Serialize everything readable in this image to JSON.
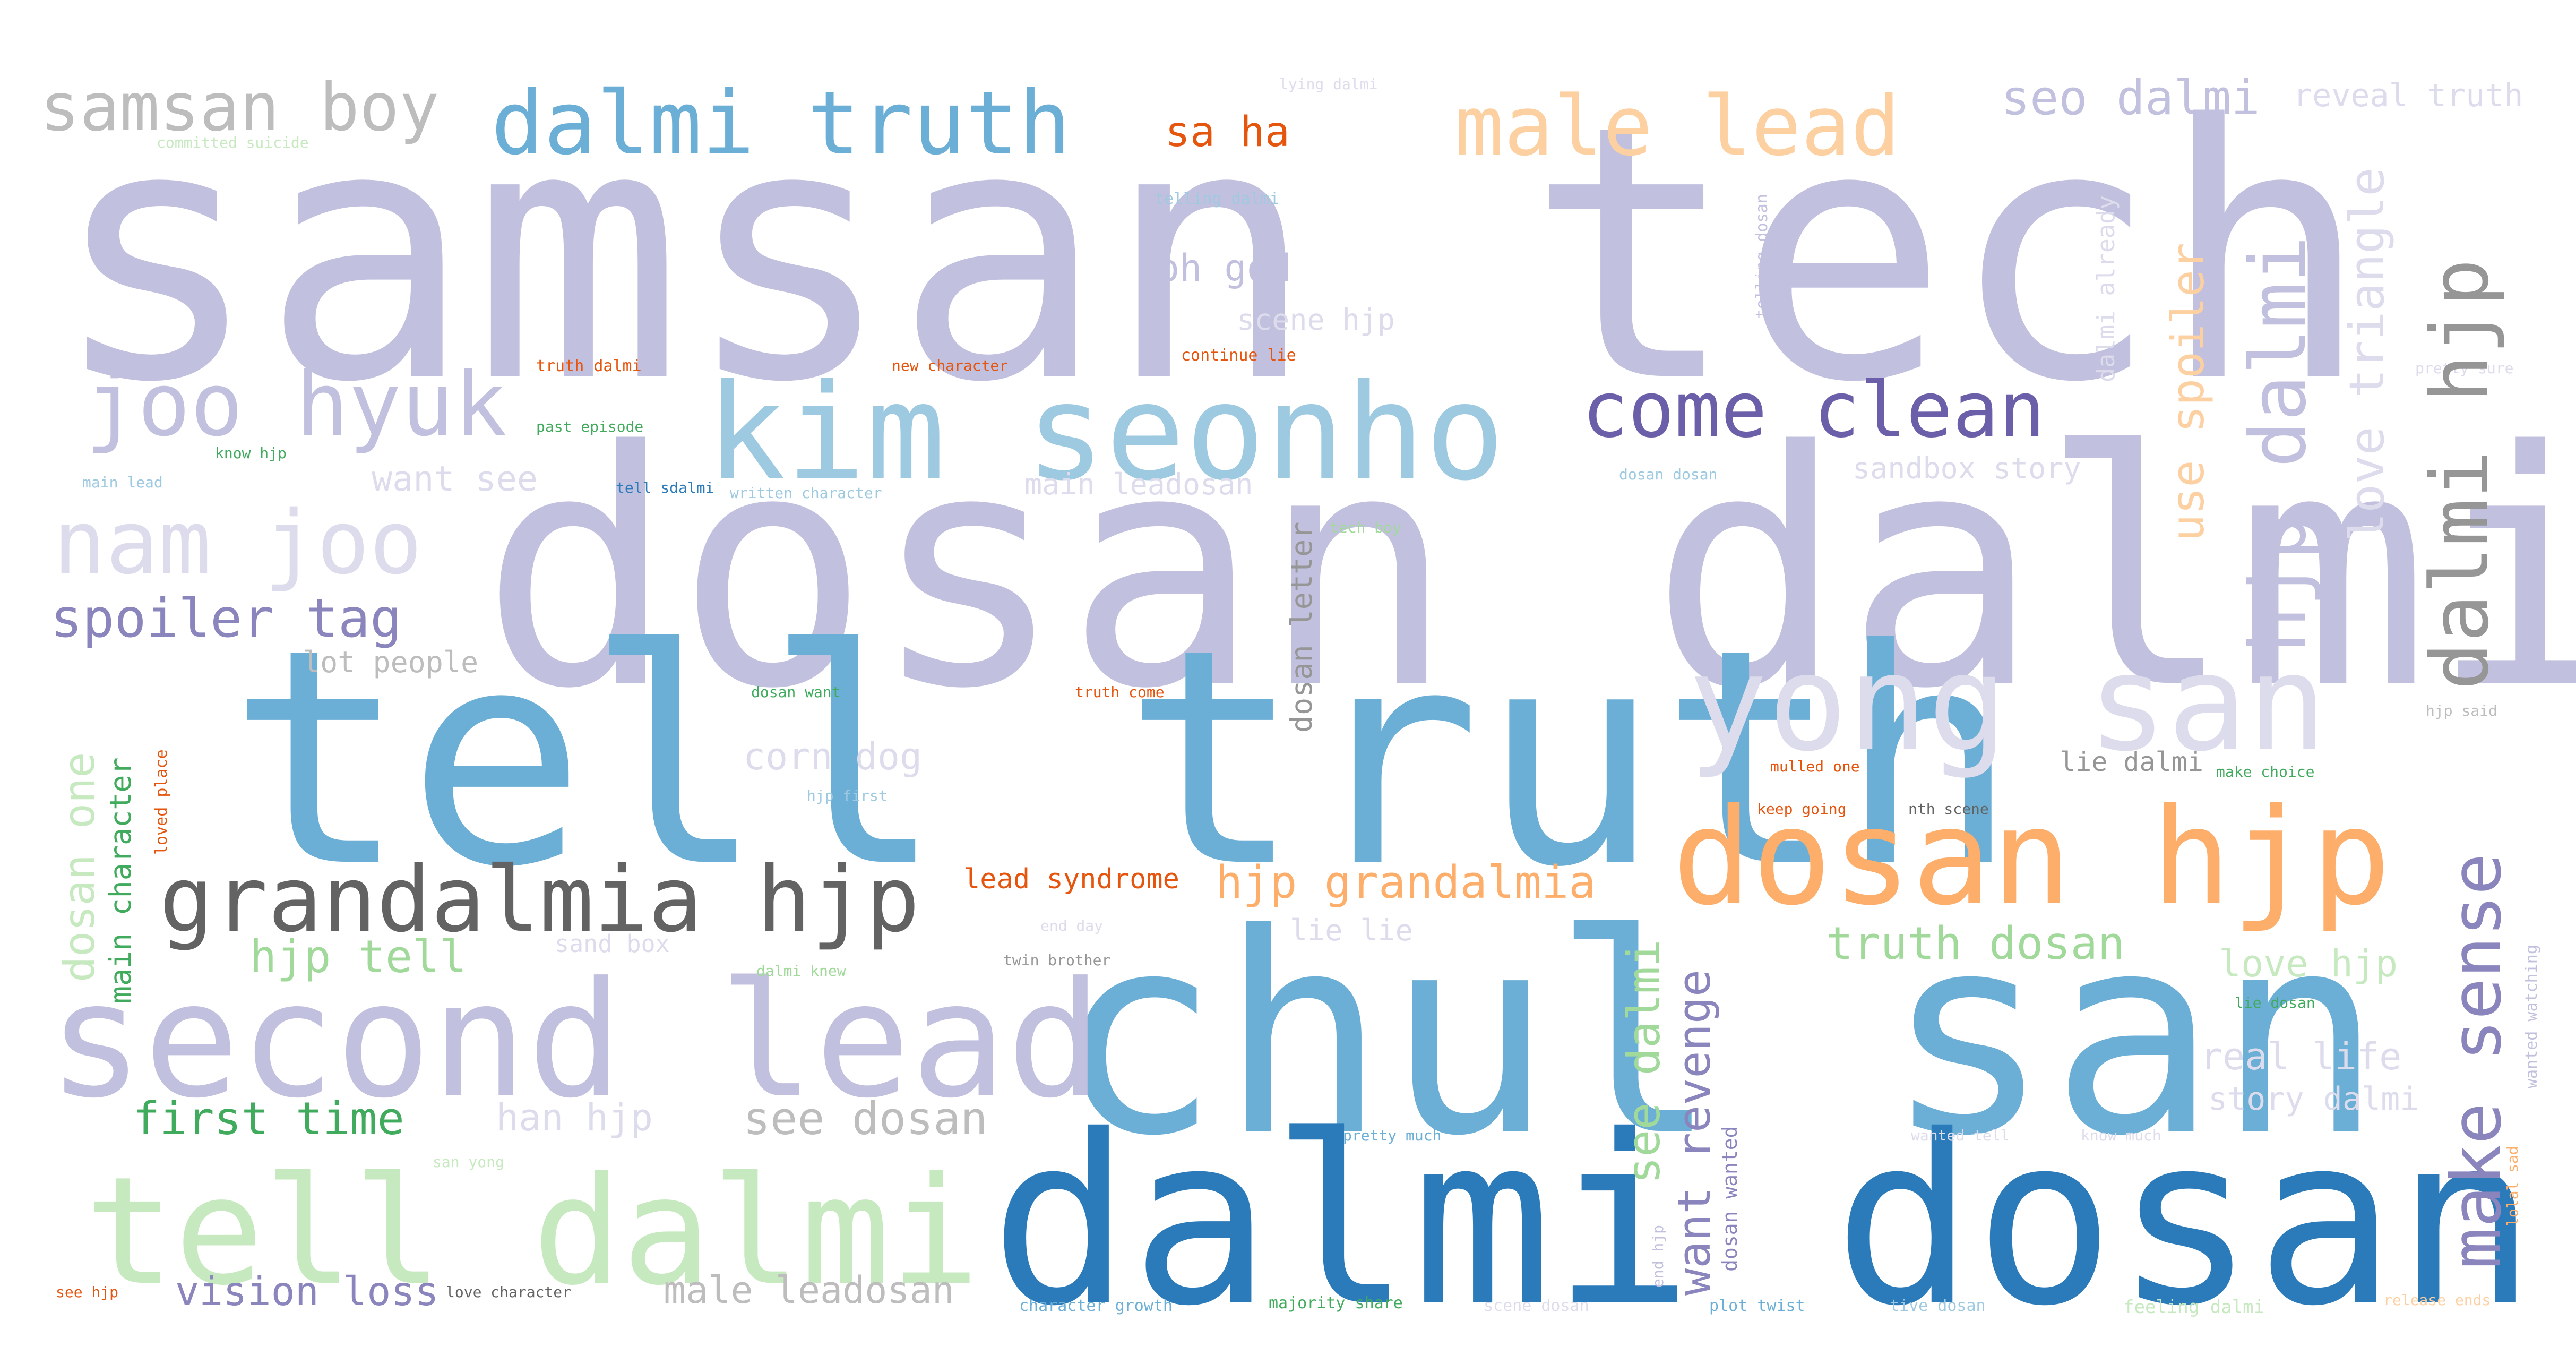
{
  "palette": {
    "lavender": "#c1c0de",
    "lavender_light": "#dddcec",
    "purple_dark": "#6a5fa8",
    "purple_mid": "#8a86bd",
    "blue_light": "#9ecae1",
    "blue_mid": "#6baed6",
    "blue_dark": "#2b7bba",
    "orange": "#fdae6b",
    "orange_light": "#fdd0a2",
    "orange_dark": "#e6550d",
    "green_light": "#c7e9c0",
    "green_mid": "#a1d99b",
    "green_dark": "#41ab5d",
    "gray_light": "#bdbdbd",
    "gray_mid": "#969696",
    "gray_dark": "#636363"
  },
  "words": [
    {
      "text": "samsan tech"
    },
    {
      "text": "dosan dalmi"
    },
    {
      "text": "tell truth"
    },
    {
      "text": "chul san"
    },
    {
      "text": "dalmi dosan"
    },
    {
      "text": "second lead"
    },
    {
      "text": "tell dalmi"
    },
    {
      "text": "kim seonho"
    },
    {
      "text": "dosan hjp"
    },
    {
      "text": "yong san"
    },
    {
      "text": "grandalmia hjp"
    },
    {
      "text": "dalmi truth"
    },
    {
      "text": "joo hyuk"
    },
    {
      "text": "nam joo"
    },
    {
      "text": "come clean"
    },
    {
      "text": "male lead"
    },
    {
      "text": "samsan boy"
    },
    {
      "text": "spoiler tag"
    },
    {
      "text": "seo dalmi"
    },
    {
      "text": "sa ha"
    },
    {
      "text": "reveal truth"
    },
    {
      "text": "oh god"
    },
    {
      "text": "scene hjp"
    },
    {
      "text": "hjp grandalmia"
    },
    {
      "text": "lead syndrome"
    },
    {
      "text": "hjp tell"
    },
    {
      "text": "first time"
    },
    {
      "text": "han hjp"
    },
    {
      "text": "see dosan"
    },
    {
      "text": "truth dosan"
    },
    {
      "text": "love hjp"
    },
    {
      "text": "real life"
    },
    {
      "text": "story dalmi"
    },
    {
      "text": "vision loss"
    },
    {
      "text": "male leadosan"
    },
    {
      "text": "lot people"
    },
    {
      "text": "corn dog"
    },
    {
      "text": "lie lie"
    },
    {
      "text": "lie dalmi"
    },
    {
      "text": "want see"
    },
    {
      "text": "main leadosan"
    },
    {
      "text": "sandbox story"
    },
    {
      "text": "sand box"
    },
    {
      "text": "lying dalmi"
    },
    {
      "text": "committed suicide"
    },
    {
      "text": "telling dalmi"
    },
    {
      "text": "truth dalmi"
    },
    {
      "text": "new character"
    },
    {
      "text": "continue lie"
    },
    {
      "text": "past episode"
    },
    {
      "text": "tell sdalmi"
    },
    {
      "text": "written character"
    },
    {
      "text": "dosan dosan"
    },
    {
      "text": "tech boy"
    },
    {
      "text": "pretty sure"
    },
    {
      "text": "hjp said"
    },
    {
      "text": "dosan want"
    },
    {
      "text": "truth come"
    },
    {
      "text": "hjp first"
    },
    {
      "text": "mulled one"
    },
    {
      "text": "make choice"
    },
    {
      "text": "keep going"
    },
    {
      "text": "nth scene"
    },
    {
      "text": "end day"
    },
    {
      "text": "twin brother"
    },
    {
      "text": "dalmi knew"
    },
    {
      "text": "know hjp"
    },
    {
      "text": "main lead"
    },
    {
      "text": "lie dosan"
    },
    {
      "text": "pretty much"
    },
    {
      "text": "wanted tell"
    },
    {
      "text": "know much"
    },
    {
      "text": "san yong"
    },
    {
      "text": "see hjp"
    },
    {
      "text": "love character"
    },
    {
      "text": "character growth"
    },
    {
      "text": "majority share"
    },
    {
      "text": "scene dosan"
    },
    {
      "text": "plot twist"
    },
    {
      "text": "tive dosan"
    },
    {
      "text": "feeling dalmi"
    },
    {
      "text": "release ends"
    },
    {
      "text": "dalmi hjp"
    },
    {
      "text": "hjp dalmi"
    },
    {
      "text": "make sense"
    },
    {
      "text": "love triangle"
    },
    {
      "text": "use spoiler"
    },
    {
      "text": "dalmi already"
    },
    {
      "text": "see dalmi"
    },
    {
      "text": "want revenge"
    },
    {
      "text": "dosan wanted"
    },
    {
      "text": "dosan letter"
    },
    {
      "text": "dosan one"
    },
    {
      "text": "main character"
    },
    {
      "text": "loved place"
    },
    {
      "text": "telling dosan"
    },
    {
      "text": "wanted watching"
    },
    {
      "text": "lolal sad"
    },
    {
      "text": "end hjp"
    }
  ]
}
